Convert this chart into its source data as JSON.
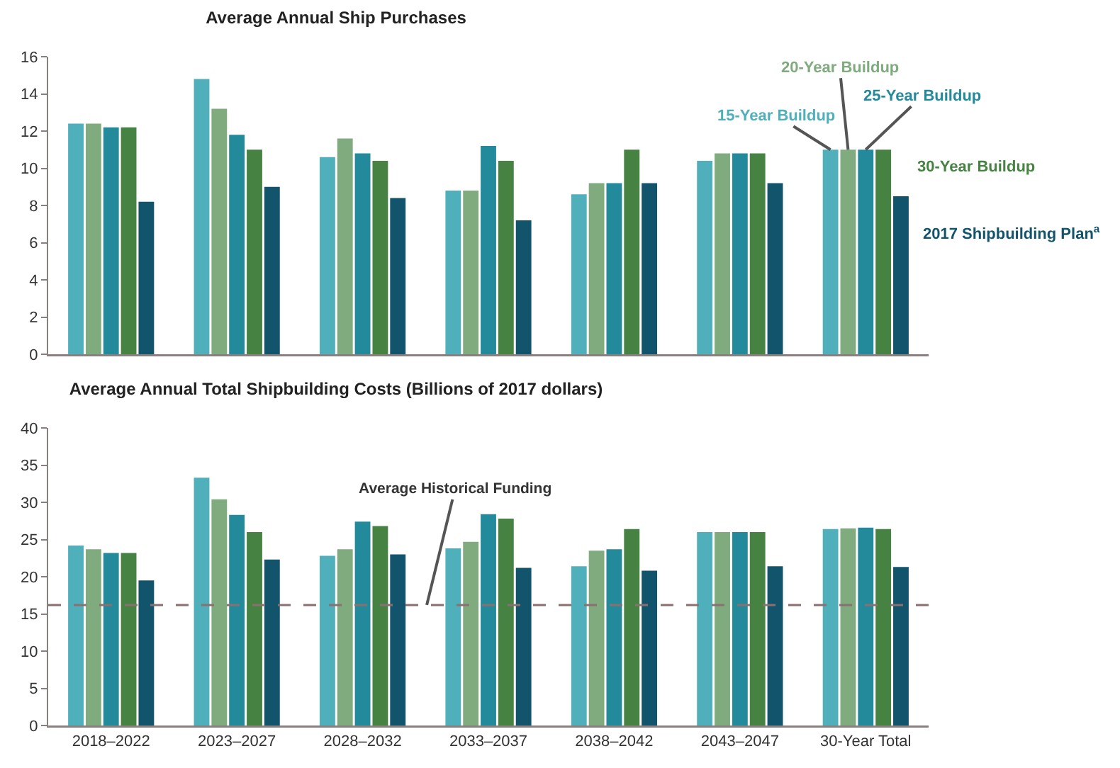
{
  "chart_data": [
    {
      "type": "bar",
      "title": "Average Annual Ship Purchases",
      "categories": [
        null,
        null,
        null,
        null,
        null,
        null,
        null
      ],
      "tick_labels": "y",
      "ylim": [
        0,
        16
      ],
      "yticks": [
        0,
        2,
        4,
        6,
        8,
        10,
        12,
        14,
        16
      ],
      "grid": false,
      "legend": false,
      "series": [
        {
          "name": "15-Year Buildup",
          "color": "#4fb0bb",
          "values": [
            12.4,
            14.8,
            10.6,
            8.8,
            8.6,
            10.4,
            11.0
          ]
        },
        {
          "name": "20-Year Buildup",
          "color": "#7fab7e",
          "values": [
            12.4,
            13.2,
            11.6,
            8.8,
            9.2,
            10.8,
            11.0
          ]
        },
        {
          "name": "25-Year Buildup",
          "color": "#238a9b",
          "values": [
            12.2,
            11.8,
            10.8,
            11.2,
            9.2,
            10.8,
            11.0
          ]
        },
        {
          "name": "30-Year Buildup",
          "color": "#468343",
          "values": [
            12.2,
            11.0,
            10.4,
            10.4,
            11.0,
            10.8,
            11.0
          ]
        },
        {
          "name": "2017 Shipbuilding Plan$^{a}$",
          "color": "#13546d",
          "values": [
            8.2,
            9.0,
            8.4,
            7.2,
            9.2,
            9.2,
            8.5
          ]
        }
      ]
    },
    {
      "type": "bar",
      "title": "Average Annual Total Shipbuilding Costs (Billions of 2017 dollars)",
      "categories": [
        "2018–2022",
        "2023–2027",
        "2028–2032",
        "2033–2037",
        "2038–2042",
        "2043–2047",
        "30-Year Total"
      ],
      "ylim": [
        0,
        40
      ],
      "yticks": [
        0,
        5,
        10,
        15,
        20,
        25,
        30,
        35,
        40
      ],
      "grid": false,
      "legend": false,
      "ref_lines": [
        {
          "axis": "y",
          "value": 16.2,
          "label": "Average Historical Funding",
          "color": "#8a7070",
          "line_style": "dashed"
        }
      ],
      "series": [
        {
          "color": "#4fb0bb",
          "values": [
            24.2,
            33.3,
            22.8,
            23.8,
            21.4,
            26.0,
            26.4
          ]
        },
        {
          "color": "#7fab7e",
          "values": [
            23.7,
            30.4,
            23.7,
            24.7,
            23.5,
            26.0,
            26.5
          ]
        },
        {
          "color": "#238a9b",
          "values": [
            23.2,
            28.3,
            27.4,
            28.4,
            23.7,
            26.0,
            26.6
          ]
        },
        {
          "color": "#468343",
          "values": [
            23.2,
            26.0,
            26.8,
            27.8,
            26.4,
            26.0,
            26.4
          ]
        },
        {
          "color": "#13546d",
          "values": [
            19.5,
            22.3,
            23.0,
            21.2,
            20.8,
            21.4,
            21.3
          ]
        }
      ]
    }
  ]
}
